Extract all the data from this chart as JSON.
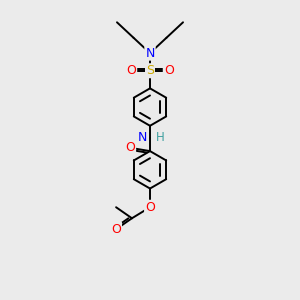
{
  "background_color": "#ebebeb",
  "bond_color": "#000000",
  "bond_width": 1.4,
  "atom_colors": {
    "N": "#0000ff",
    "O": "#ff0000",
    "S": "#ccaa00",
    "H": "#40a0a0"
  },
  "figsize": [
    3.0,
    3.0
  ],
  "dpi": 100
}
